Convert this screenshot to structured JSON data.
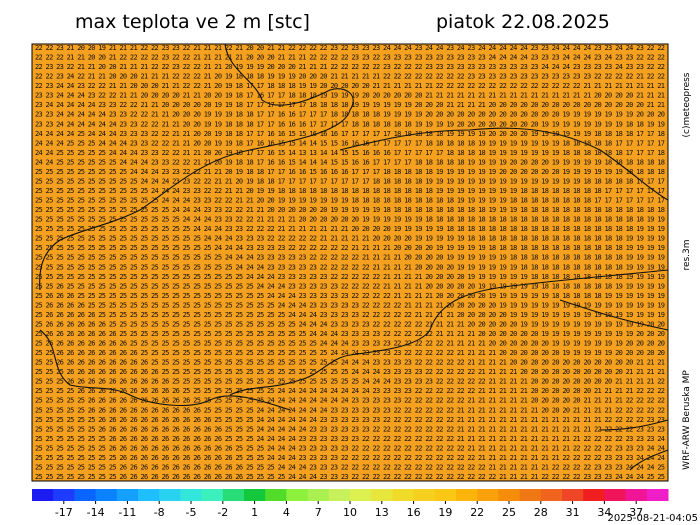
{
  "header": {
    "title": "max teplota ve 2 m [stc]",
    "date": "piatok 22.08.2025"
  },
  "credits": {
    "copyright": "(c)meteopress",
    "resolution": "res.3m",
    "model": "WRF-ARW Beruska MP",
    "timestamp": "2025-08-21-04:05"
  },
  "map": {
    "background": "#f5a01e",
    "rows": [
      "22 22 23 21 20 20 19 21 21 21 22 22 23 23 22 21 21 21 22 21 20 20 21 21 22 22 22 22 23 22 23 23 23 24 24 24 23 24 24 23 24 23 24 24 24 24 24 23 23 24 24 24 24 23 23 24 24 23 22 22",
      "22 22 22 21 21 20 20 21 22 22 22 22 23 22 22 21 21 21 21 21 20 20 20 21 21 21 22 22 22 22 23 23 22 23 23 23 23 23 23 23 23 23 23 24 24 24 24 23 23 23 24 24 24 23 24 23 23 22 22 22",
      "22 23 23 22 21 21 20 20 21 21 21 22 22 23 22 22 21 21 20 19 19 19 20 20 20 21 21 21 22 22 22 22 22 23 22 22 22 23 23 23 23 23 23 23 23 23 23 23 24 24 24 23 23 23 23 24 23 23 22 22",
      "22 22 23 24 22 21 21 20 20 20 21 21 21 22 22 22 21 20 19 18 18 18 19 19 19 20 20 20 21 21 21 21 21 22 22 22 22 22 22 22 22 23 23 23 23 23 23 23 23 23 23 23 23 22 22 22 22 21 22 22",
      "22 23 24 24 23 22 22 21 21 20 20 20 21 21 22 22 21 20 19 18 17 17 18 18 18 19 19 20 20 20 20 20 21 21 21 21 21 21 22 22 22 22 22 22 22 22 22 22 22 22 22 22 21 21 21 21 21 21 21 21",
      "23 23 24 24 24 23 22 22 21 21 20 20 20 20 21 21 20 20 19 18 17 16 17 17 18 18 18 19 19 19 19 20 20 20 20 20 20 21 21 21 21 21 21 21 21 21 21 21 21 21 21 21 21 20 20 20 20 21 21 21",
      "23 24 24 24 24 24 23 23 22 22 21 21 20 20 20 20 20 19 19 18 17 17 17 17 17 17 18 18 18 18 19 19 19 19 19 19 20 20 20 21 21 21 21 20 20 20 20 20 20 20 20 20 20 20 20 20 20 20 21 21",
      "23 23 24 24 24 24 24 23 23 22 22 21 21 20 20 20 19 19 19 18 18 17 17 16 16 17 17 17 18 18 18 18 18 19 19 19 19 20 20 20 20 20 20 20 20 20 20 20 20 20 19 19 19 19 19 19 19 20 20 20",
      "23 23 24 24 24 24 24 24 23 23 22 22 21 21 20 20 19 19 18 18 18 17 17 16 16 16 17 17 17 17 18 18 18 18 18 18 19 19 19 19 20 20 20 20 20 20 20 20 19 19 19 19 19 19 19 19 18 18 19 19",
      "24 24 24 24 25 24 24 24 23 23 23 22 22 21 21 20 20 19 18 18 17 17 16 16 15 15 16 16 16 17 17 17 17 17 18 18 18 18 18 19 19 19 19 20 20 20 20 19 19 19 19 19 19 18 18 18 18 17 17 18",
      "24 24 24 25 25 25 24 24 24 23 23 22 22 21 21 20 20 19 19 18 17 16 16 15 15 14 14 15 15 16 16 16 17 17 17 17 17 18 18 18 18 18 19 19 19 19 19 19 19 19 18 18 18 18 18 17 17 17 17 17",
      "24 24 25 25 25 25 25 24 24 24 23 23 22 22 21 21 20 20 19 18 17 17 16 15 14 13 13 14 14 15 15 16 16 16 17 17 17 17 17 18 18 18 18 19 19 19 19 19 19 19 18 18 18 18 18 18 17 17 17 18",
      "24 24 25 25 25 25 25 25 24 24 24 23 23 22 22 21 21 20 19 18 18 17 16 16 15 14 14 14 15 15 16 16 17 17 17 17 18 18 18 18 18 19 19 19 19 20 20 20 20 19 19 19 19 19 18 18 18 18 18 18",
      "25 25 25 25 25 25 25 25 25 24 24 24 23 23 22 22 21 21 20 19 18 18 17 17 16 16 15 16 16 16 17 17 17 18 18 18 18 18 19 19 19 19 19 19 20 20 20 20 20 20 19 19 19 19 19 19 18 18 18 18",
      "25 25 25 25 25 25 25 25 25 25 24 24 24 23 23 22 22 21 21 20 19 18 18 17 17 17 17 17 17 17 17 17 18 18 18 18 18 19 19 19 19 19 19 19 19 19 19 19 19 19 19 19 18 18 18 18 18 17 17 17",
      "25 25 25 25 25 25 25 25 25 25 25 24 24 24 23 23 22 22 21 21 20 19 19 18 18 18 18 18 18 18 18 18 18 18 18 18 18 18 19 19 19 19 19 19 19 19 18 18 18 18 18 18 18 18 17 17 17 17 17 17",
      "25 25 25 25 25 25 25 25 25 25 25 25 24 24 24 23 23 22 22 21 21 20 20 19 19 19 19 19 19 19 18 18 18 18 18 18 18 18 18 18 19 19 19 19 19 18 18 18 18 18 18 18 18 17 17 17 17 17 17 17",
      "25 25 25 25 25 25 25 25 25 25 25 25 25 24 24 24 23 23 22 22 21 21 20 20 20 20 20 20 19 19 19 19 19 18 18 18 18 18 18 18 18 18 18 19 19 19 18 18 18 18 18 18 18 18 18 18 18 18 18 18",
      "25 25 25 25 25 25 25 25 25 25 25 25 25 25 24 24 24 23 23 22 22 21 21 21 21 20 20 20 20 20 20 19 19 19 19 19 19 18 18 18 18 18 18 18 18 18 18 18 18 18 18 18 18 18 18 18 18 18 19 19",
      "25 25 25 25 25 25 25 25 25 25 25 25 25 25 25 24 24 24 23 23 22 22 22 21 21 21 21 21 21 21 20 20 20 20 19 19 19 19 19 18 18 18 18 18 18 18 18 18 18 18 18 18 18 18 18 18 18 19 19 19",
      "25 25 25 25 25 25 25 25 25 25 25 25 25 25 25 25 24 24 24 23 23 23 22 22 22 22 22 21 21 21 21 21 20 20 20 20 19 19 19 19 19 18 18 18 18 18 18 18 18 18 18 18 18 18 18 18 19 19 19 19",
      "25 25 25 25 25 25 25 25 25 25 25 25 25 25 25 25 25 24 24 24 23 23 23 23 22 22 22 22 22 22 21 21 21 21 20 20 20 20 19 19 19 19 19 18 18 18 18 18 18 18 18 18 18 18 18 18 19 19 19 19",
      "25 25 25 25 25 25 25 25 25 25 25 25 25 25 25 25 25 25 24 24 24 23 23 23 23 23 22 22 22 22 22 21 21 21 21 20 20 20 20 19 19 19 19 19 19 18 18 18 18 18 18 18 18 18 18 18 19 19 19 19",
      "25 25 25 25 25 25 25 25 25 25 25 25 25 25 25 25 25 25 25 24 24 24 23 23 23 23 23 22 22 22 22 22 21 21 21 21 20 20 20 20 19 19 19 19 19 19 18 18 18 18 18 18 18 18 18 18 19 19 19 19",
      "25 25 25 25 25 25 25 25 25 25 25 25 25 25 25 25 25 25 25 25 24 24 24 23 23 23 23 23 22 22 22 22 22 21 21 21 21 20 20 20 20 19 19 19 19 19 19 18 18 18 18 18 18 18 18 18 19 19 19 19",
      "25 25 26 25 25 25 25 25 25 25 25 25 25 25 25 25 25 25 25 25 25 24 24 24 23 23 23 23 23 22 22 22 22 21 21 21 21 20 20 20 20 20 19 19 19 19 19 19 18 18 18 18 18 18 18 19 19 19 19 19",
      "25 26 26 26 25 25 25 25 25 25 25 25 25 25 25 25 25 25 25 25 25 25 24 24 24 23 23 23 23 23 22 22 22 22 21 21 21 21 20 20 20 20 20 19 19 19 19 19 19 18 18 18 18 18 19 19 19 19 19 19",
      "25 26 26 26 26 25 25 25 25 25 25 25 25 25 25 25 25 25 25 25 25 25 25 24 24 24 23 23 23 23 23 22 22 22 22 21 21 21 21 20 20 20 20 20 19 19 19 19 19 19 19 19 19 19 19 19 19 19 19 19",
      "25 26 26 26 26 26 25 25 25 25 25 25 25 25 25 25 25 25 25 25 25 25 25 25 24 24 24 23 23 23 23 22 22 22 22 22 21 21 21 21 20 20 20 20 20 19 19 19 19 19 19 19 19 19 19 19 19 19 19 19",
      "25 26 26 26 26 26 26 25 25 25 25 25 25 25 25 25 25 25 25 25 25 25 25 25 25 24 24 24 23 23 23 23 22 22 22 22 22 21 21 21 21 20 20 20 20 20 19 19 19 19 19 19 19 19 19 19 19 19 20 20",
      "25 26 26 26 26 26 26 26 25 25 25 25 25 25 25 25 25 25 25 25 25 25 25 25 25 25 24 24 24 23 23 23 23 22 22 22 22 22 21 21 21 21 20 20 20 20 20 20 19 19 19 19 19 19 19 19 19 20 20 20",
      "25 26 26 26 26 26 26 26 26 25 25 25 25 25 25 25 25 25 25 25 25 25 25 25 25 25 25 24 24 24 23 23 23 23 22 22 22 22 22 21 21 21 21 20 20 20 20 20 20 19 19 19 19 19 19 19 20 20 20 20",
      "25 25 26 26 26 26 26 26 26 26 25 25 25 25 25 25 25 25 25 25 25 25 25 25 25 25 25 25 24 24 24 23 23 23 23 22 22 22 22 22 21 21 21 21 20 20 20 20 20 20 19 19 19 19 19 20 20 20 20 20",
      "25 25 26 26 26 26 26 26 26 26 26 25 25 25 25 25 25 25 25 25 25 25 25 25 25 25 25 25 25 24 24 24 23 23 23 23 22 22 22 22 22 21 21 21 21 20 20 20 20 20 20 20 20 20 20 20 20 21 21 21",
      "25 25 25 26 26 26 26 26 26 26 26 26 25 25 25 25 25 25 25 25 25 25 25 25 25 25 25 25 25 25 24 24 24 23 23 23 23 22 22 22 22 22 21 21 21 21 20 20 20 20 20 20 20 20 20 20 21 21 21 21",
      "25 25 25 26 26 26 26 26 26 26 26 26 26 25 25 25 25 25 25 25 25 25 25 25 25 25 25 25 25 25 25 24 24 24 23 23 23 23 22 22 22 22 22 21 21 21 21 20 20 20 20 20 20 20 20 21 21 21 21 22",
      "25 25 25 25 26 26 26 26 26 26 26 26 26 26 25 25 25 25 25 25 25 25 25 24 24 24 24 24 24 24 24 24 23 23 23 23 22 22 22 22 22 22 21 21 21 21 21 20 20 20 20 20 20 21 21 21 21 22 22 22",
      "25 25 25 25 25 26 26 26 26 26 26 26 26 26 26 25 25 25 25 25 25 25 24 24 24 24 24 24 24 24 23 23 23 23 23 22 22 22 22 22 22 21 21 21 21 21 21 20 20 20 20 20 21 21 21 21 22 22 22 22",
      "25 25 25 25 25 26 26 26 26 26 26 26 26 26 26 26 25 25 25 25 25 24 24 24 24 24 24 24 23 23 23 23 23 23 22 22 22 22 22 22 21 21 21 21 21 21 21 21 20 20 20 21 21 21 21 22 22 22 22 22",
      "25 25 25 25 25 25 26 26 26 26 26 26 26 26 26 26 26 25 25 25 25 24 24 24 24 24 24 23 23 23 23 23 23 22 22 22 22 22 22 22 21 21 21 21 21 21 21 21 21 21 21 21 21 21 22 22 22 22 23 23",
      "25 25 25 25 25 25 26 26 26 26 26 26 26 26 26 26 26 26 25 25 25 24 24 24 24 24 23 23 23 23 23 23 22 22 22 22 22 22 22 22 21 21 21 21 21 21 21 21 21 21 21 21 21 22 22 22 22 23 23 23",
      "25 25 25 25 25 25 25 26 26 26 26 26 26 26 26 26 26 26 25 25 25 24 24 24 24 23 23 23 23 23 23 22 22 22 22 22 22 22 22 22 21 21 21 21 21 21 21 21 21 21 21 21 22 22 22 22 23 23 23 24",
      "25 25 25 25 25 25 25 26 26 26 26 26 26 26 26 26 26 26 26 25 25 25 24 24 24 23 23 23 23 23 22 22 22 22 22 22 22 22 22 22 22 21 21 21 21 21 21 21 21 21 21 22 22 22 22 23 23 23 24 24",
      "25 25 25 25 25 25 25 25 26 26 26 26 26 26 26 26 26 26 26 25 25 25 24 24 24 23 23 23 23 22 22 22 22 22 22 22 22 22 22 22 22 22 21 21 21 21 21 21 21 21 22 22 22 22 23 23 23 24 24 24",
      "25 25 25 25 25 25 25 25 26 26 26 26 26 26 26 26 26 26 26 26 25 25 25 24 24 24 23 23 23 22 22 22 22 22 22 22 22 22 22 22 22 22 22 21 21 21 21 21 21 22 22 22 22 23 23 23 24 24 24 25",
      "25 25 25 25 25 25 25 25 26 26 26 26 26 26 26 26 26 26 26 26 25 25 25 25 24 24 24 23 23 23 22 22 22 22 22 22 22 22 22 22 22 22 22 22 21 21 21 21 22 22 22 22 23 23 23 24 24 24 25 25"
    ]
  },
  "colorbar": {
    "lim": [
      -20,
      40
    ],
    "ticks": [
      -17,
      -14,
      -11,
      -8,
      -5,
      -2,
      1,
      4,
      7,
      10,
      13,
      16,
      19,
      22,
      25,
      28,
      31,
      34,
      37
    ],
    "colors": [
      "#1c1cf0",
      "#1e3cff",
      "#0a64ff",
      "#0a82ff",
      "#14a0ff",
      "#1ebeff",
      "#28d2f0",
      "#32e6dc",
      "#3cf0be",
      "#28dc78",
      "#14c83c",
      "#50dc28",
      "#8cf03c",
      "#aaf050",
      "#c8f05a",
      "#dcf050",
      "#e6e63c",
      "#f0dc28",
      "#f5d01e",
      "#fac814",
      "#fab40a",
      "#faa00a",
      "#f58c0a",
      "#f07814",
      "#f0641e",
      "#f04628",
      "#f01e1e",
      "#f0145a",
      "#f01496",
      "#f01ec8"
    ]
  }
}
